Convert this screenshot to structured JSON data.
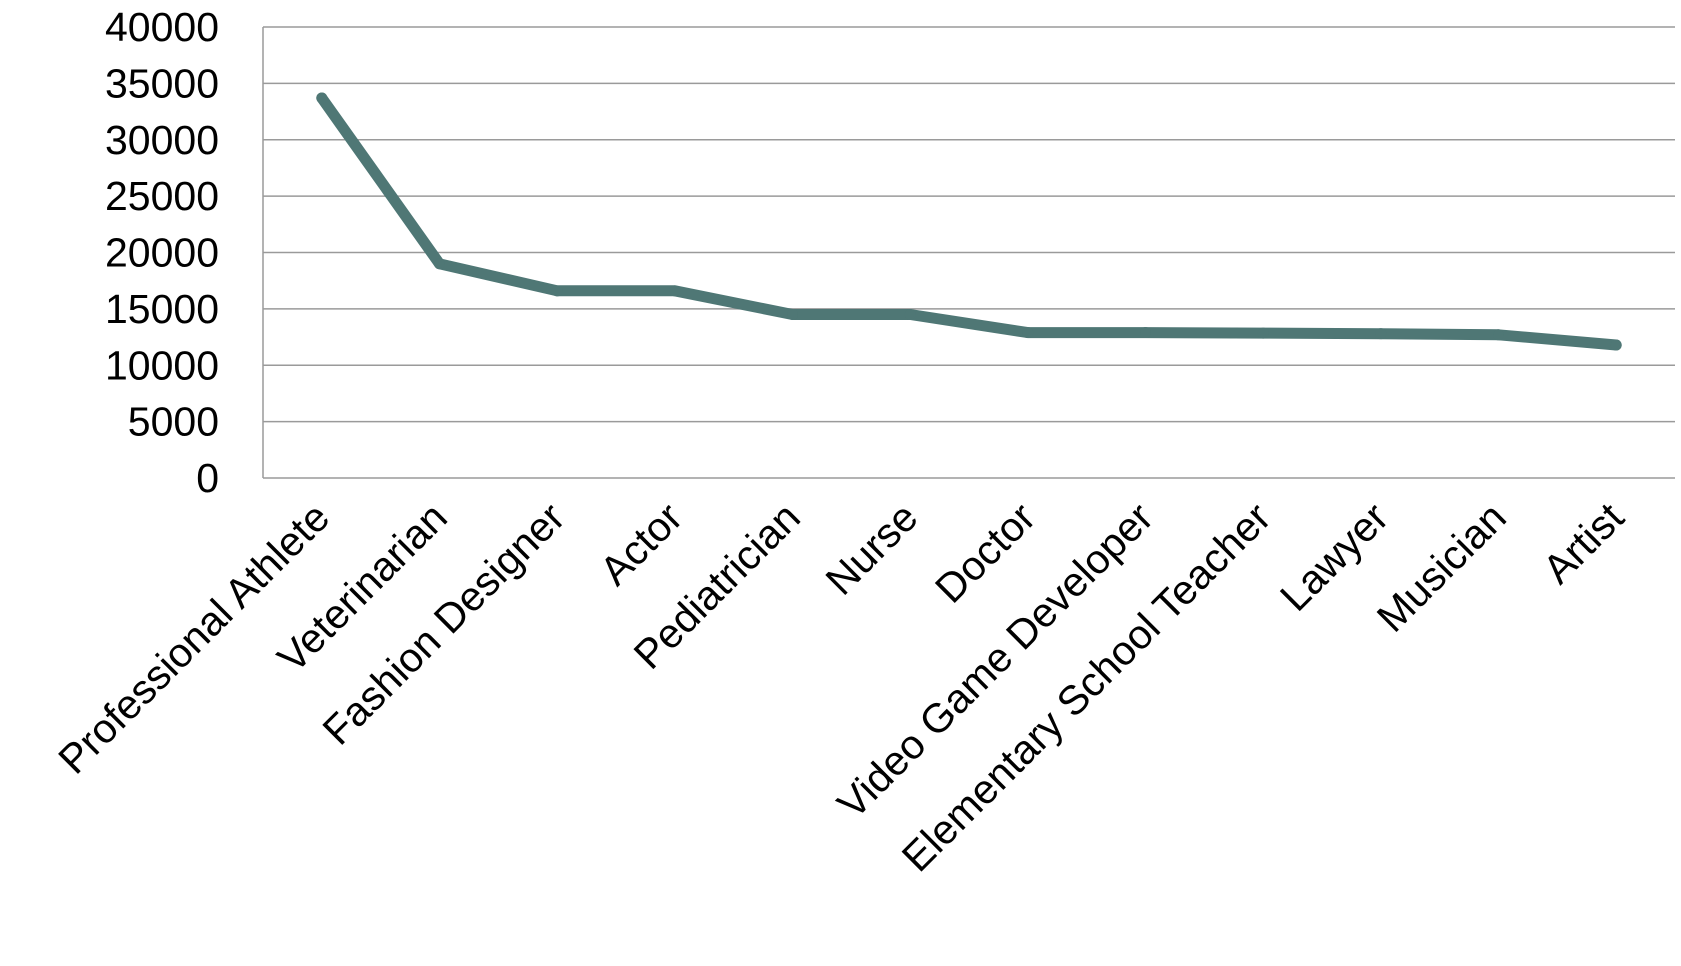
{
  "chart_data": {
    "type": "line",
    "title": "",
    "xlabel": "",
    "ylabel": "",
    "categories": [
      "Professional Athlete",
      "Veterinarian",
      "Fashion Designer",
      "Actor",
      "Pediatrician",
      "Nurse",
      "Doctor",
      "Video Game Developer",
      "Elementary School Teacher",
      "Lawyer",
      "Musician",
      "Artist"
    ],
    "series": [
      {
        "values": [
          33700,
          19000,
          16600,
          16600,
          14500,
          14500,
          12900,
          12900,
          12850,
          12800,
          12700,
          11800
        ]
      }
    ],
    "ylim": [
      0,
      40000
    ],
    "yticks": [
      "0",
      "5000",
      "10000",
      "15000",
      "20000",
      "25000",
      "30000",
      "35000",
      "40000"
    ],
    "grid": true,
    "legend": "none",
    "colors": {
      "line": "#4f7775",
      "grid": "#9a9a9a",
      "axis": "#9a9a9a",
      "text": "#000000"
    }
  }
}
